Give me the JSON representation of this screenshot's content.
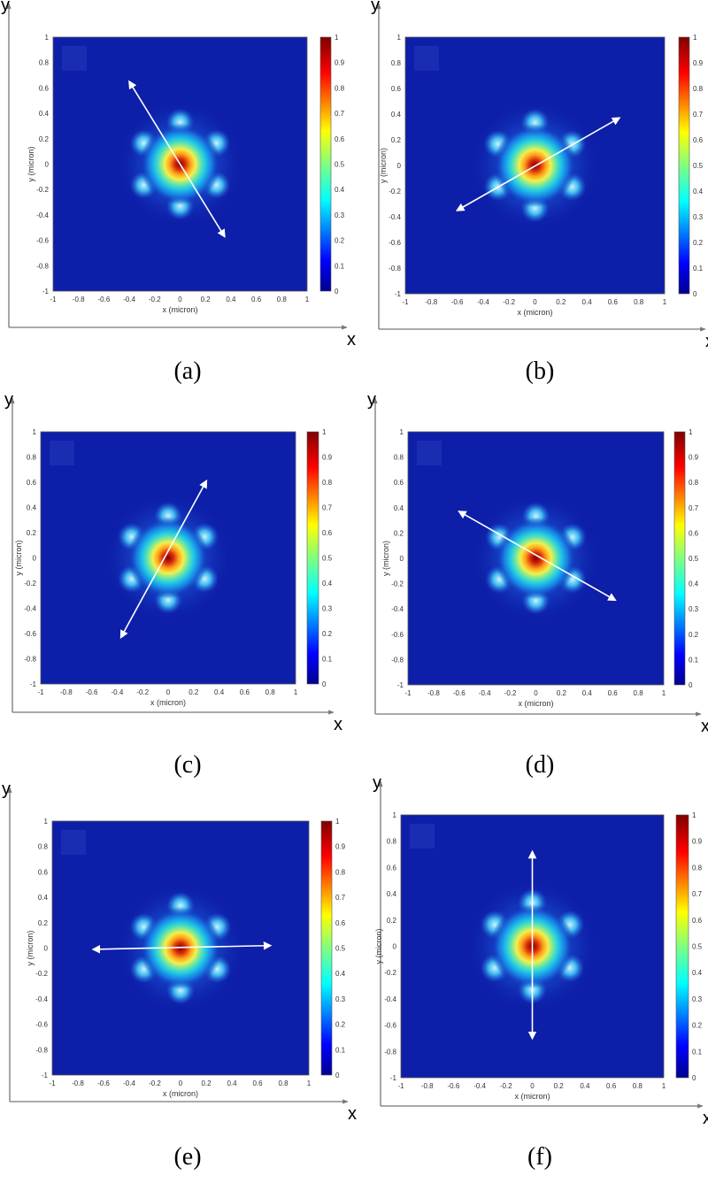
{
  "colors": {
    "map_low": "#0d1ea8",
    "spot_core": "#8b0000",
    "arrow": "#ffffff",
    "frame_axis": "#666666"
  },
  "colorbar_ticks": [
    "0",
    "0.1",
    "0.2",
    "0.3",
    "0.4",
    "0.5",
    "0.6",
    "0.7",
    "0.8",
    "0.9",
    "1"
  ],
  "axis_ticks": [
    "-1",
    "-0.8",
    "-0.6",
    "-0.4",
    "-0.2",
    "0",
    "0.2",
    "0.4",
    "0.6",
    "0.8",
    "1"
  ],
  "chart_data": [
    {
      "panel": "a",
      "caption": "(a)",
      "type": "heatmap",
      "title": "",
      "xlabel": "x (micron)",
      "ylabel": "y (micron)",
      "outer_x": "x",
      "outer_y": "y",
      "xlim": [
        -1,
        1
      ],
      "ylim": [
        -1,
        1
      ],
      "colorbar_range": [
        0,
        1
      ],
      "peak_center": [
        0,
        0
      ],
      "arrow": {
        "from": [
          -0.4,
          0.65
        ],
        "to": [
          0.35,
          -0.57
        ]
      }
    },
    {
      "panel": "b",
      "caption": "(b)",
      "type": "heatmap",
      "title": "",
      "xlabel": "x (micron)",
      "ylabel": "y (micron)",
      "outer_x": "x",
      "outer_y": "y",
      "xlim": [
        -1,
        1
      ],
      "ylim": [
        -1,
        1
      ],
      "colorbar_range": [
        0,
        1
      ],
      "peak_center": [
        0,
        0
      ],
      "arrow": {
        "from": [
          -0.6,
          -0.35
        ],
        "to": [
          0.65,
          0.37
        ]
      }
    },
    {
      "panel": "c",
      "caption": "(c)",
      "type": "heatmap",
      "title": "",
      "xlabel": "x (micron)",
      "ylabel": "y (micron)",
      "outer_x": "x",
      "outer_y": "y",
      "xlim": [
        -1,
        1
      ],
      "ylim": [
        -1,
        1
      ],
      "colorbar_range": [
        0,
        1
      ],
      "peak_center": [
        0,
        0
      ],
      "arrow": {
        "from": [
          -0.37,
          -0.63
        ],
        "to": [
          0.3,
          0.61
        ]
      }
    },
    {
      "panel": "d",
      "caption": "(d)",
      "type": "heatmap",
      "title": "",
      "xlabel": "x (micron)",
      "ylabel": "y (micron)",
      "outer_x": "x",
      "outer_y": "y",
      "xlim": [
        -1,
        1
      ],
      "ylim": [
        -1,
        1
      ],
      "colorbar_range": [
        0,
        1
      ],
      "peak_center": [
        0,
        0
      ],
      "arrow": {
        "from": [
          -0.6,
          0.37
        ],
        "to": [
          0.62,
          -0.33
        ]
      }
    },
    {
      "panel": "e",
      "caption": "(e)",
      "type": "heatmap",
      "title": "",
      "xlabel": "x (micron)",
      "ylabel": "y (micron)",
      "outer_x": "x",
      "outer_y": "y",
      "xlim": [
        -1,
        1
      ],
      "ylim": [
        -1,
        1
      ],
      "colorbar_range": [
        0,
        1
      ],
      "peak_center": [
        0,
        0
      ],
      "arrow": {
        "from": [
          -0.68,
          -0.01
        ],
        "to": [
          0.7,
          0.02
        ]
      }
    },
    {
      "panel": "f",
      "caption": "(f)",
      "type": "heatmap",
      "title": "",
      "xlabel": "x (micron)",
      "ylabel": "y (micron)",
      "outer_x": "x",
      "outer_y": "y",
      "xlim": [
        -1,
        1
      ],
      "ylim": [
        -1,
        1
      ],
      "colorbar_range": [
        0,
        1
      ],
      "peak_center": [
        0,
        0
      ],
      "arrow": {
        "from": [
          0.0,
          0.72
        ],
        "to": [
          0.0,
          -0.7
        ]
      }
    }
  ]
}
